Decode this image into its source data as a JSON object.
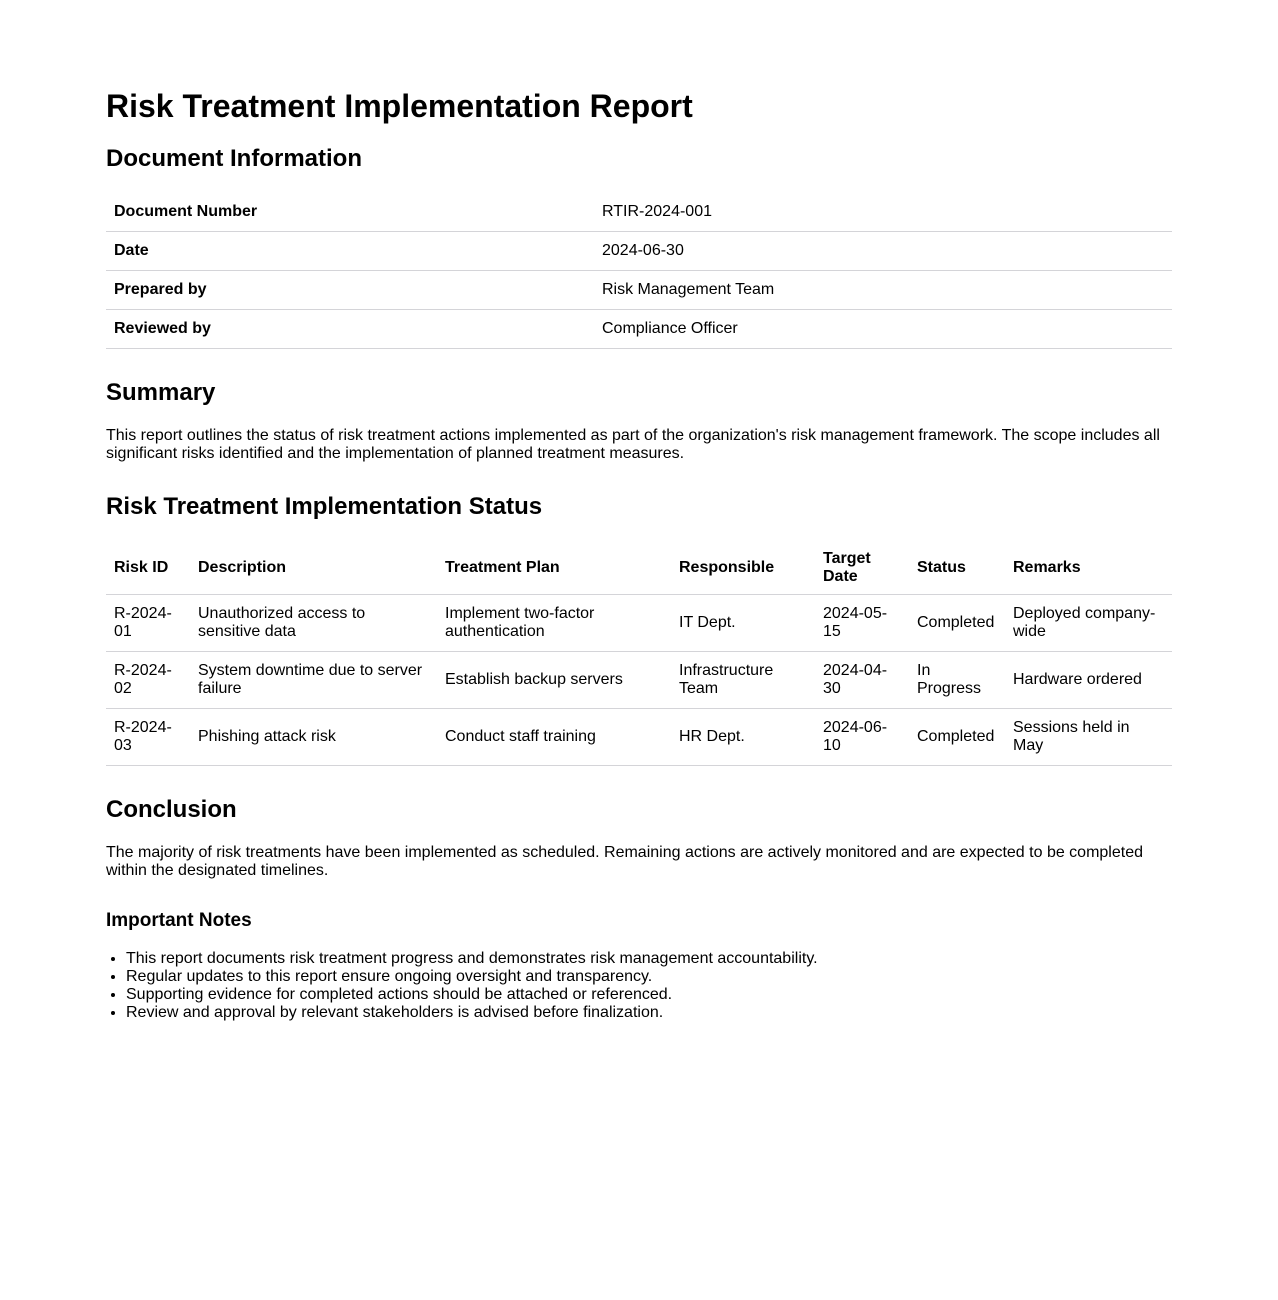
{
  "title": "Risk Treatment Implementation Report",
  "doc_info": {
    "heading": "Document Information",
    "rows": [
      {
        "label": "Document Number",
        "value": "RTIR-2024-001"
      },
      {
        "label": "Date",
        "value": "2024-06-30"
      },
      {
        "label": "Prepared by",
        "value": "Risk Management Team"
      },
      {
        "label": "Reviewed by",
        "value": "Compliance Officer"
      }
    ]
  },
  "summary": {
    "heading": "Summary",
    "text": "This report outlines the status of risk treatment actions implemented as part of the organization's risk management framework. The scope includes all significant risks identified and the implementation of planned treatment measures."
  },
  "status": {
    "heading": "Risk Treatment Implementation Status",
    "columns": [
      "Risk ID",
      "Description",
      "Treatment Plan",
      "Responsible",
      "Target Date",
      "Status",
      "Remarks"
    ],
    "rows": [
      [
        "R-2024-01",
        "Unauthorized access to sensitive data",
        "Implement two-factor authentication",
        "IT Dept.",
        "2024-05-15",
        "Completed",
        "Deployed company-wide"
      ],
      [
        "R-2024-02",
        "System downtime due to server failure",
        "Establish backup servers",
        "Infrastructure Team",
        "2024-04-30",
        "In Progress",
        "Hardware ordered"
      ],
      [
        "R-2024-03",
        "Phishing attack risk",
        "Conduct staff training",
        "HR Dept.",
        "2024-06-10",
        "Completed",
        "Sessions held in May"
      ]
    ]
  },
  "conclusion": {
    "heading": "Conclusion",
    "text": "The majority of risk treatments have been implemented as scheduled. Remaining actions are actively monitored and are expected to be completed within the designated timelines."
  },
  "notes": {
    "heading": "Important Notes",
    "items": [
      "This report documents risk treatment progress and demonstrates risk management accountability.",
      "Regular updates to this report ensure ongoing oversight and transparency.",
      "Supporting evidence for completed actions should be attached or referenced.",
      "Review and approval by relevant stakeholders is advised before finalization."
    ]
  }
}
